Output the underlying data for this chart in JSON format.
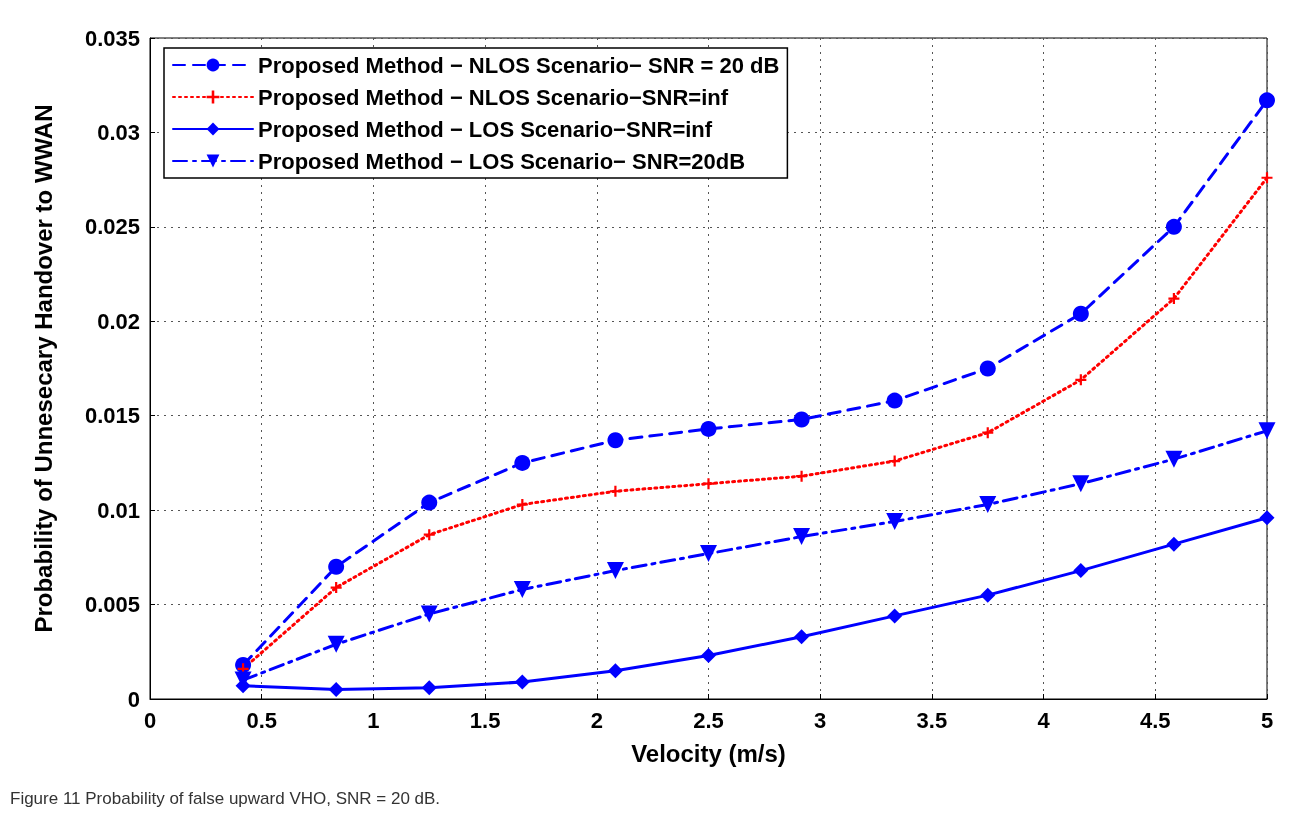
{
  "chart_data": {
    "type": "line",
    "xlabel": "Velocity (m/s)",
    "ylabel": "Probability of Unnesecary Handover to WWAN",
    "x": [
      0.4167,
      0.8333,
      1.25,
      1.6667,
      2.0833,
      2.5,
      2.9167,
      3.3333,
      3.75,
      4.1667,
      4.5833,
      5
    ],
    "series": [
      {
        "name": "Proposed Method − NLOS Scenario− SNR = 20 dB",
        "color": "#0000ff",
        "marker": "circle",
        "line_style": "dashed",
        "values": [
          0.0018,
          0.007,
          0.0104,
          0.0125,
          0.0137,
          0.0143,
          0.0148,
          0.0158,
          0.0175,
          0.0204,
          0.025,
          0.0317
        ]
      },
      {
        "name": "Proposed Method − NLOS Scenario−SNR=inf",
        "color": "#ff0000",
        "marker": "cross",
        "line_style": "dotted",
        "values": [
          0.0016,
          0.0059,
          0.0087,
          0.0103,
          0.011,
          0.0114,
          0.0118,
          0.0126,
          0.0141,
          0.0169,
          0.0212,
          0.0276
        ]
      },
      {
        "name": "Proposed Method − LOS Scenario−SNR=inf",
        "color": "#0000ff",
        "marker": "diamond",
        "line_style": "solid",
        "values": [
          0.0007,
          0.0005,
          0.0006,
          0.0009,
          0.0015,
          0.0023,
          0.0033,
          0.0044,
          0.0055,
          0.0068,
          0.0082,
          0.0096
        ]
      },
      {
        "name": "Proposed Method − LOS Scenario− SNR=20dB",
        "color": "#0000ff",
        "marker": "triangle",
        "line_style": "dashdot",
        "values": [
          0.001,
          0.0029,
          0.0045,
          0.0058,
          0.0068,
          0.0077,
          0.0086,
          0.0094,
          0.0103,
          0.0114,
          0.0127,
          0.0142
        ]
      }
    ],
    "xlim": [
      0,
      5
    ],
    "xticks": [
      0,
      0.5,
      1,
      1.5,
      2,
      2.5,
      3,
      3.5,
      4,
      4.5,
      5
    ],
    "ylim": [
      0,
      0.035
    ],
    "yticks": [
      0,
      0.005,
      0.01,
      0.015,
      0.02,
      0.025,
      0.03,
      0.035
    ],
    "grid": true,
    "legend": "top left",
    "annotations": [
      "Figure 11 Probability of false upward VHO, SNR = 20 dB."
    ]
  }
}
